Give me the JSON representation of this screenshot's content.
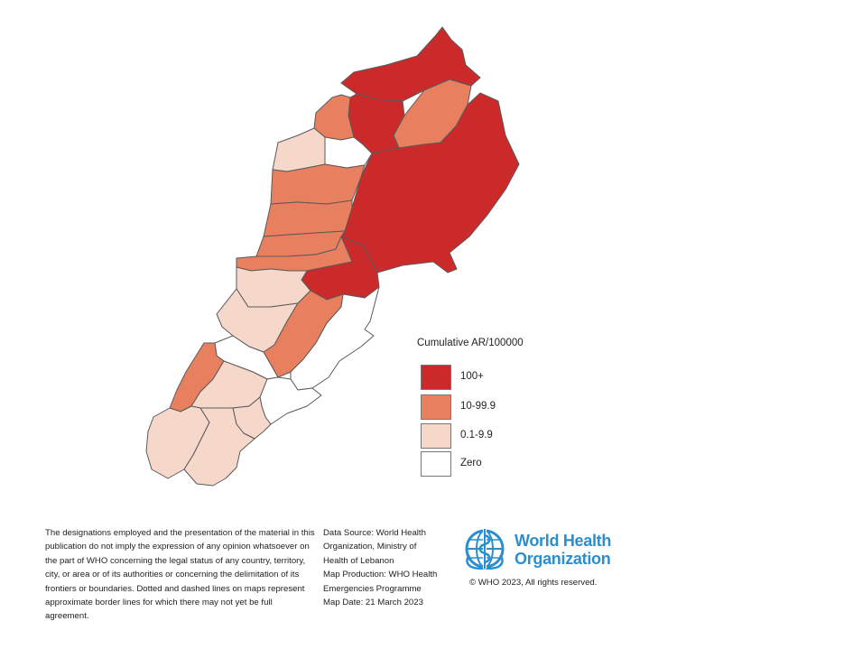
{
  "legend": {
    "title": "Cumulative AR/100000",
    "items": [
      {
        "label": "100+",
        "color": "#cc2a2a"
      },
      {
        "label": "10-99.9",
        "color": "#e8805f"
      },
      {
        "label": "0.1-9.9",
        "color": "#f6d8cb"
      },
      {
        "label": "Zero",
        "color": "#ffffff"
      }
    ]
  },
  "disclaimer": "The designations employed and the presentation of the material in this publication do not imply the expression of any opinion whatsoever on the part of WHO concerning the legal status of any country, territory, city, or area or of its authorities or concerning the delimitation of its frontiers or boundaries. Dotted and dashed lines on maps represent approximate border lines for which there may not yet be full agreement.",
  "source": {
    "lines": [
      "Data Source: World Health",
      "Organization, Ministry of",
      "Health of Lebanon",
      "Map Production: WHO Health",
      "Emergencies Programme",
      "Map Date: 21 March 2023"
    ]
  },
  "logo": {
    "name_line1": "World Health",
    "name_line2": "Organization",
    "brand_color": "#2a8fd0",
    "icon": "who-emblem-icon"
  },
  "copyright": "© WHO 2023, All rights reserved."
}
